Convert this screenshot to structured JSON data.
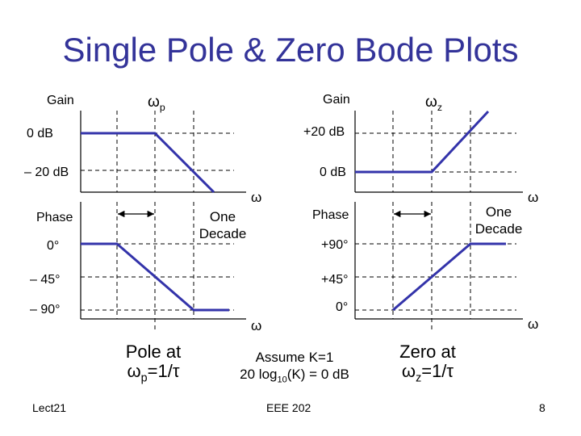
{
  "title": "Single Pole & Zero Bode Plots",
  "pole_plots": {
    "gain_label": "Gain",
    "omega_p_symbol": "ω",
    "omega_p_sub": "p",
    "gain_ticks": [
      "0 dB",
      "– 20 dB"
    ],
    "axis_omega": "ω",
    "phase_label": "Phase",
    "decade_label_1": "One",
    "decade_label_2": "Decade",
    "phase_ticks": [
      "0°",
      "– 45°",
      "– 90°"
    ],
    "phase_axis_omega": "ω"
  },
  "zero_plots": {
    "gain_label": "Gain",
    "omega_z_symbol": "ω",
    "omega_z_sub": "z",
    "gain_ticks": [
      "+20 dB",
      "0 dB"
    ],
    "axis_omega": "ω",
    "phase_label": "Phase",
    "decade_label_1": "One",
    "decade_label_2": "Decade",
    "phase_ticks": [
      "+90°",
      "+45°",
      "0°"
    ],
    "phase_axis_omega": "ω"
  },
  "captions": {
    "pole_line1": "Pole at",
    "pole_line2_prefix": "ω",
    "pole_line2_sub": "p",
    "pole_line2_suffix": "=1/τ",
    "assume_line1": "Assume K=1",
    "assume_line2_prefix": "20 log",
    "assume_line2_sub": "10",
    "assume_line2_suffix": "(K) = 0 dB",
    "zero_line1": "Zero at",
    "zero_line2_prefix": "ω",
    "zero_line2_sub": "z",
    "zero_line2_suffix": "=1/τ"
  },
  "footer": {
    "left": "Lect21",
    "center": "EEE 202",
    "right": "8"
  },
  "colors": {
    "title": "#333399",
    "curve": "#3333aa",
    "axis": "#000000"
  }
}
